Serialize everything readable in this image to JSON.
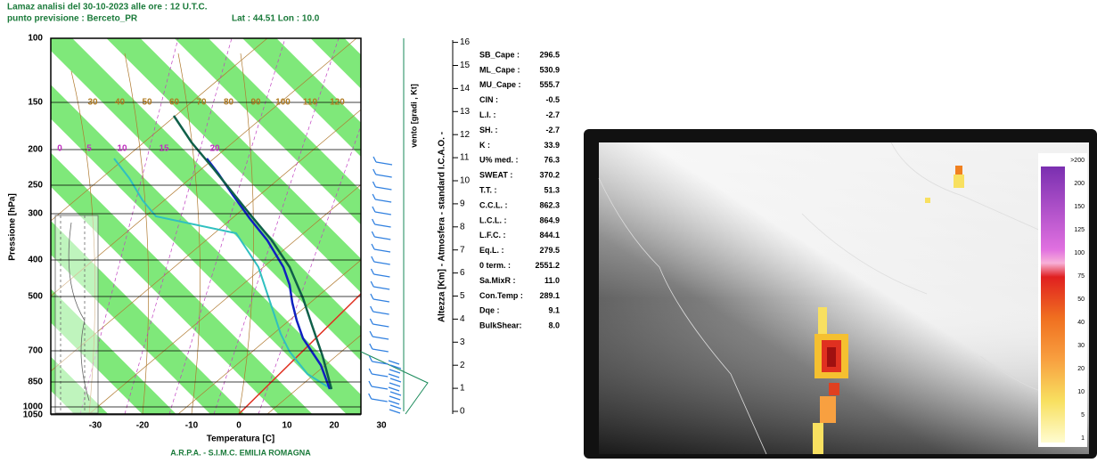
{
  "header": {
    "line1": "Lamaz     analisi  del 30-10-2023 alle ore : 12 U.T.C.",
    "line2": "punto previsione : Berceto_PR",
    "coords": "Lat : 44.51 Lon : 10.0"
  },
  "skewt": {
    "pressure_labels": [
      "100",
      "150",
      "200",
      "250",
      "300",
      "400",
      "500",
      "700",
      "850",
      "1000",
      "1050"
    ],
    "temperature_labels": [
      "-30",
      "-20",
      "-10",
      "0",
      "10",
      "20",
      "30"
    ],
    "y_axis_label": "Pressione [hPa]",
    "x_axis_label": "Temperatura [C]",
    "footer": "A.R.P.A. - S.I.M.C.  EMILIA ROMAGNA",
    "mixing_labels": [
      "30",
      "40",
      "50",
      "60",
      "70",
      "80",
      "90",
      "100",
      "110",
      "120"
    ],
    "theta_labels": [
      "0",
      "5",
      "10",
      "15",
      "20"
    ],
    "height_axis_label": "Altezza [Km] - Atmosfera - standard I.C.A.O. -",
    "wind_label": "vento [gradi , Kt]",
    "height_labels": [
      "0",
      "1",
      "2",
      "3",
      "4",
      "5",
      "6",
      "7",
      "8",
      "9",
      "10",
      "11",
      "12",
      "13",
      "14",
      "15",
      "16"
    ]
  },
  "indices": [
    [
      "SB_Cape :",
      "296.5"
    ],
    [
      "ML_Cape :",
      "530.9"
    ],
    [
      "MU_Cape :",
      "555.7"
    ],
    [
      "CIN      :",
      "-0.5"
    ],
    [
      "L.I.      :",
      "-2.7"
    ],
    [
      "SH.      :",
      "-2.7"
    ],
    [
      "K         :",
      "33.9"
    ],
    [
      "U% med. :",
      "76.3"
    ],
    [
      "SWEAT  :",
      "370.2"
    ],
    [
      "T.T.      :",
      "51.3"
    ],
    [
      "C.C.L.   :",
      "862.3"
    ],
    [
      "L.C.L.   :",
      "864.9"
    ],
    [
      "L.F.C.   :",
      "844.1"
    ],
    [
      "Eq.L.    :",
      "279.5"
    ],
    [
      "0 term. :",
      "2551.2"
    ],
    [
      "Sa.MixR :",
      "11.0"
    ],
    [
      "Con.Temp :",
      "289.1"
    ],
    [
      "Dqe      :",
      "9.1"
    ],
    [
      "BulkShear:",
      "8.0"
    ]
  ],
  "colorbar": [
    ">200",
    "200",
    "150",
    "125",
    "100",
    "75",
    "50",
    "40",
    "30",
    "20",
    "10",
    "5",
    "1"
  ]
}
